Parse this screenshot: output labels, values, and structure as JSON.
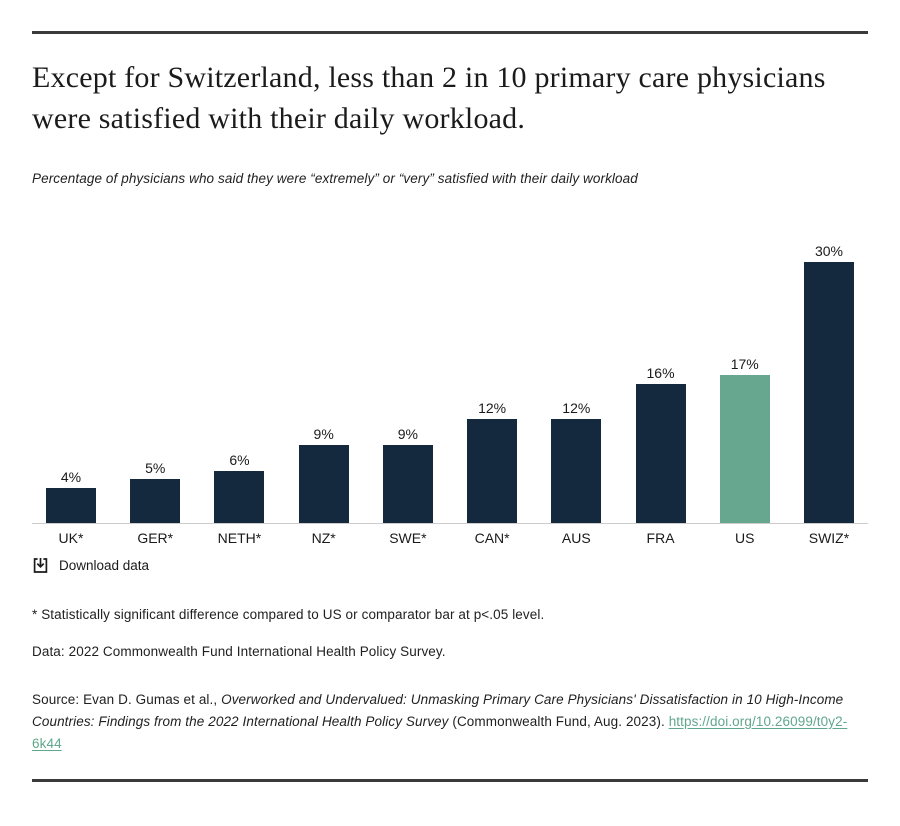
{
  "header": {
    "title": "Except for Switzerland, less than 2 in 10 primary care physicians were satisfied with their daily workload.",
    "subtitle": "Percentage of physicians who said they were “extremely” or “very” satisfied with their daily workload"
  },
  "chart_data": {
    "type": "bar",
    "categories": [
      "UK*",
      "GER*",
      "NETH*",
      "NZ*",
      "SWE*",
      "CAN*",
      "AUS",
      "FRA",
      "US",
      "SWIZ*"
    ],
    "values": [
      4,
      5,
      6,
      9,
      9,
      12,
      12,
      16,
      17,
      30
    ],
    "value_labels": [
      "4%",
      "5%",
      "6%",
      "9%",
      "9%",
      "12%",
      "12%",
      "16%",
      "17%",
      "30%"
    ],
    "highlight_category": "US",
    "bar_color": "#14293E",
    "highlight_color": "#67A68F",
    "axis_line_color": "#cccccc",
    "ylim": [
      0,
      32
    ],
    "grid": false,
    "legend": false,
    "title": "Except for Switzerland, less than 2 in 10 primary care physicians were satisfied with their daily workload.",
    "xlabel": "",
    "ylabel": ""
  },
  "download": {
    "label": "Download data"
  },
  "notes": {
    "footnote": "* Statistically significant difference compared to US or comparator bar at p<.05 level.",
    "data_line": "Data: 2022 Commonwealth Fund International Health Policy Survey.",
    "source_prefix": "Source: Evan D. Gumas et al., ",
    "source_italic": "Overworked and Undervalued: Unmasking Primary Care Physicians' Dissatisfaction in 10 High-Income Countries: Findings from the 2022 International Health Policy Survey",
    "source_suffix": " (Commonwealth Fund, Aug. 2023). ",
    "source_link": "https://doi.org/10.26099/t0y2-6k44"
  },
  "colors": {
    "bar_navy": "#14293E",
    "bar_green": "#67A68F",
    "rule": "#3a3a3a",
    "axis": "#cccccc",
    "link_teal": "#61a78d",
    "text": "#1b1b1b"
  }
}
